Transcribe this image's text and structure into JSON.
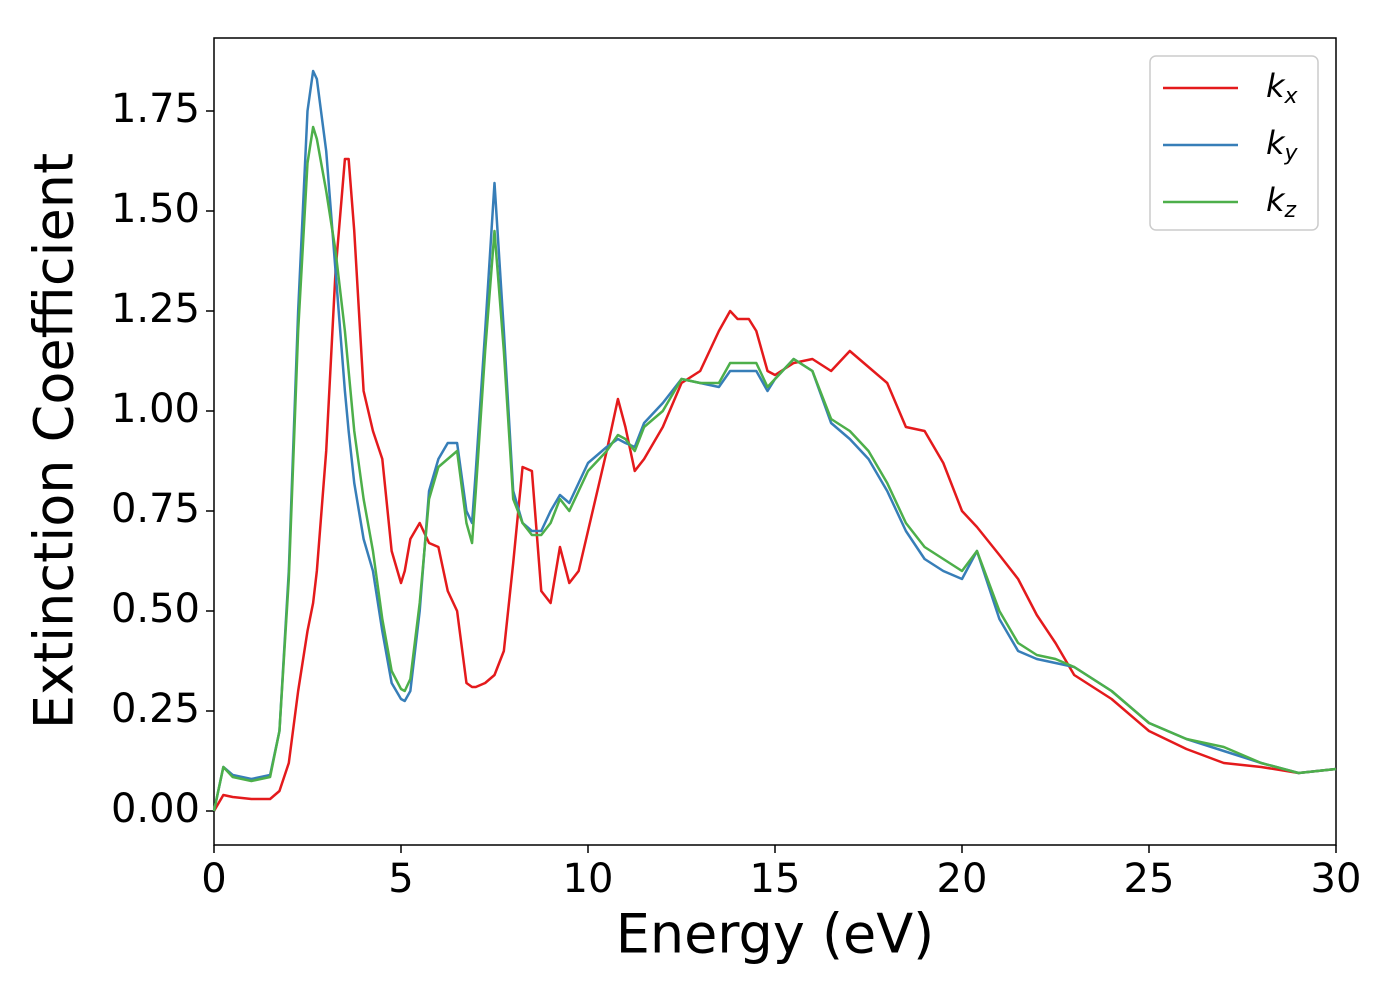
{
  "chart_data": {
    "type": "line",
    "xlabel": "Energy (eV)",
    "ylabel": "Extinction Coefficient",
    "x": [
      0,
      0.25,
      0.5,
      1,
      1.5,
      1.75,
      2,
      2.25,
      2.5,
      2.65,
      2.75,
      3,
      3.25,
      3.5,
      3.6,
      3.75,
      4,
      4.25,
      4.5,
      4.75,
      5,
      5.1,
      5.25,
      5.5,
      5.75,
      6,
      6.25,
      6.5,
      6.75,
      6.9,
      7,
      7.25,
      7.5,
      7.75,
      8,
      8.25,
      8.5,
      8.75,
      9,
      9.25,
      9.5,
      9.75,
      10,
      10.5,
      10.8,
      11,
      11.25,
      11.5,
      12,
      12.5,
      13,
      13.5,
      13.8,
      14,
      14.3,
      14.5,
      14.8,
      15,
      15.5,
      16,
      16.5,
      17,
      17.5,
      18,
      18.5,
      19,
      19.5,
      20,
      20.4,
      21,
      21.5,
      22,
      22.5,
      23,
      24,
      25,
      26,
      27,
      28,
      29,
      30
    ],
    "series": [
      {
        "name": "kx",
        "color": "#e41a1c",
        "values": [
          0,
          0.04,
          0.035,
          0.03,
          0.03,
          0.05,
          0.12,
          0.3,
          0.45,
          0.52,
          0.6,
          0.9,
          1.35,
          1.63,
          1.63,
          1.45,
          1.05,
          0.95,
          0.88,
          0.65,
          0.57,
          0.6,
          0.68,
          0.72,
          0.67,
          0.66,
          0.55,
          0.5,
          0.32,
          0.31,
          0.31,
          0.32,
          0.34,
          0.4,
          0.62,
          0.86,
          0.85,
          0.55,
          0.52,
          0.66,
          0.57,
          0.6,
          0.7,
          0.9,
          1.03,
          0.96,
          0.85,
          0.88,
          0.96,
          1.07,
          1.1,
          1.2,
          1.25,
          1.23,
          1.23,
          1.2,
          1.1,
          1.09,
          1.12,
          1.13,
          1.1,
          1.15,
          1.11,
          1.07,
          0.96,
          0.95,
          0.87,
          0.75,
          0.71,
          0.64,
          0.58,
          0.49,
          0.42,
          0.34,
          0.28,
          0.2,
          0.155,
          0.12,
          0.11,
          0.095,
          0.105
        ]
      },
      {
        "name": "ky",
        "color": "#377eb8",
        "values": [
          0,
          0.11,
          0.09,
          0.08,
          0.09,
          0.2,
          0.6,
          1.25,
          1.75,
          1.85,
          1.83,
          1.65,
          1.35,
          1.05,
          0.95,
          0.82,
          0.68,
          0.6,
          0.45,
          0.32,
          0.28,
          0.275,
          0.3,
          0.5,
          0.8,
          0.88,
          0.92,
          0.92,
          0.75,
          0.72,
          0.85,
          1.2,
          1.57,
          1.2,
          0.8,
          0.72,
          0.7,
          0.7,
          0.75,
          0.79,
          0.77,
          0.82,
          0.87,
          0.91,
          0.93,
          0.92,
          0.91,
          0.97,
          1.02,
          1.08,
          1.07,
          1.06,
          1.1,
          1.1,
          1.1,
          1.1,
          1.05,
          1.08,
          1.13,
          1.1,
          0.97,
          0.93,
          0.88,
          0.8,
          0.7,
          0.63,
          0.6,
          0.58,
          0.65,
          0.48,
          0.4,
          0.38,
          0.37,
          0.36,
          0.3,
          0.22,
          0.18,
          0.15,
          0.12,
          0.095,
          0.105
        ]
      },
      {
        "name": "kz",
        "color": "#4daf4a",
        "values": [
          0,
          0.11,
          0.085,
          0.075,
          0.085,
          0.2,
          0.58,
          1.2,
          1.62,
          1.71,
          1.68,
          1.55,
          1.4,
          1.2,
          1.1,
          0.95,
          0.78,
          0.65,
          0.48,
          0.35,
          0.305,
          0.3,
          0.33,
          0.52,
          0.78,
          0.86,
          0.88,
          0.9,
          0.72,
          0.67,
          0.8,
          1.15,
          1.45,
          1.15,
          0.78,
          0.72,
          0.69,
          0.69,
          0.72,
          0.78,
          0.75,
          0.8,
          0.85,
          0.9,
          0.94,
          0.93,
          0.9,
          0.96,
          1.0,
          1.08,
          1.07,
          1.07,
          1.12,
          1.12,
          1.12,
          1.12,
          1.06,
          1.08,
          1.13,
          1.1,
          0.98,
          0.95,
          0.9,
          0.82,
          0.72,
          0.66,
          0.63,
          0.6,
          0.65,
          0.5,
          0.42,
          0.39,
          0.38,
          0.36,
          0.3,
          0.22,
          0.18,
          0.16,
          0.12,
          0.095,
          0.105
        ]
      }
    ],
    "xlim": [
      0,
      30
    ],
    "xticks": [
      0,
      5,
      10,
      15,
      20,
      25,
      30
    ],
    "ylim": [
      -0.085,
      1.9325
    ],
    "yticks": [
      {
        "value": 0,
        "label": "0.00"
      },
      {
        "value": 0.25,
        "label": "0.25"
      },
      {
        "value": 0.5,
        "label": "0.50"
      },
      {
        "value": 0.75,
        "label": "0.75"
      },
      {
        "value": 1,
        "label": "1.00"
      },
      {
        "value": 1.25,
        "label": "1.25"
      },
      {
        "value": 1.5,
        "label": "1.50"
      },
      {
        "value": 1.75,
        "label": "1.75"
      }
    ],
    "grid": false,
    "legend": "upper right"
  }
}
